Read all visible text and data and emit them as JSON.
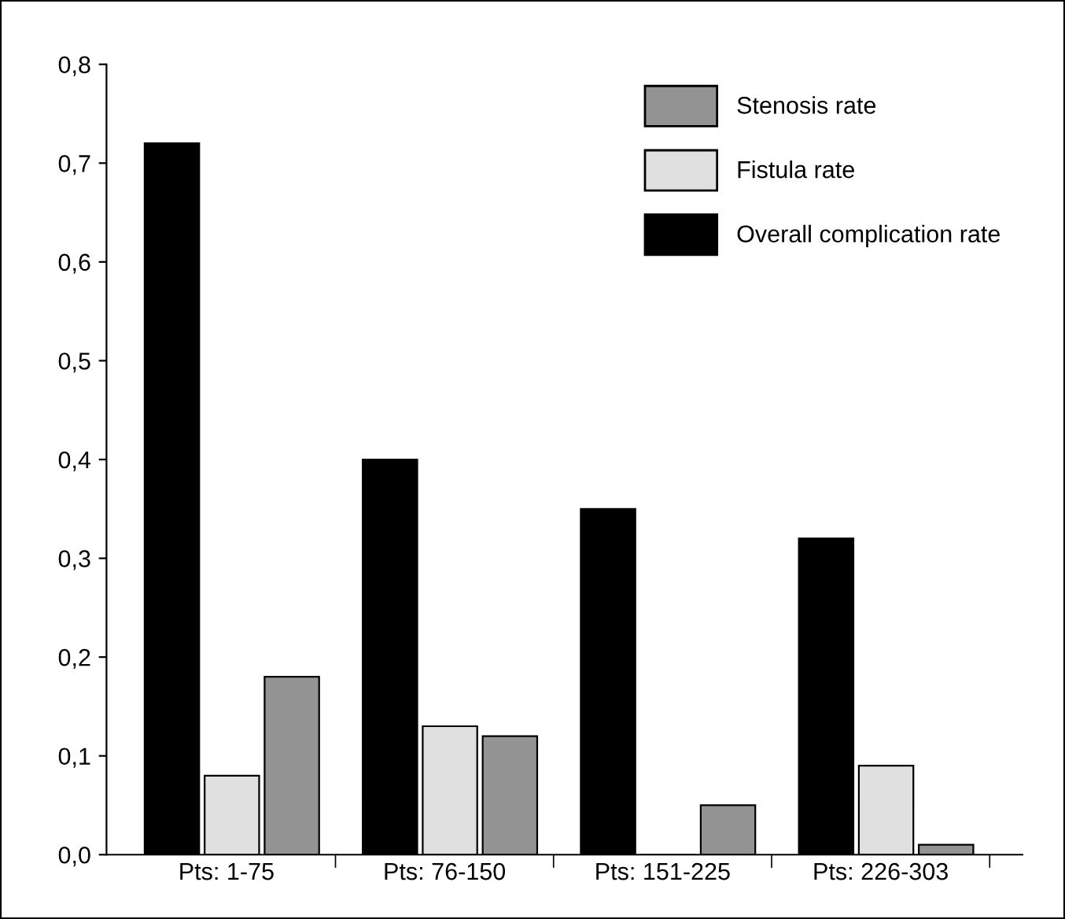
{
  "chart_data": {
    "type": "bar",
    "categories": [
      "Pts: 1-75",
      "Pts: 76-150",
      "Pts: 151-225",
      "Pts: 226-303"
    ],
    "series": [
      {
        "name": "Overall complication rate",
        "color": "#000000",
        "values": [
          0.72,
          0.4,
          0.35,
          0.32
        ]
      },
      {
        "name": "Fistula rate",
        "color": "#e0e0e0",
        "values": [
          0.08,
          0.13,
          0,
          0.09
        ]
      },
      {
        "name": "Stenosis rate",
        "color": "#939393",
        "values": [
          0.18,
          0.12,
          0.05,
          0.01
        ]
      }
    ],
    "ylim": [
      0,
      0.8
    ],
    "yticks": [
      {
        "value": 0,
        "label": "0,0"
      },
      {
        "value": 0.1,
        "label": "0,1"
      },
      {
        "value": 0.2,
        "label": "0,2"
      },
      {
        "value": 0.3,
        "label": "0,3"
      },
      {
        "value": 0.4,
        "label": "0,4"
      },
      {
        "value": 0.5,
        "label": "0,5"
      },
      {
        "value": 0.6,
        "label": "0,6"
      },
      {
        "value": 0.7,
        "label": "0,7"
      },
      {
        "value": 0.8,
        "label": "0,8"
      }
    ],
    "grid": false,
    "legend": "top right"
  }
}
